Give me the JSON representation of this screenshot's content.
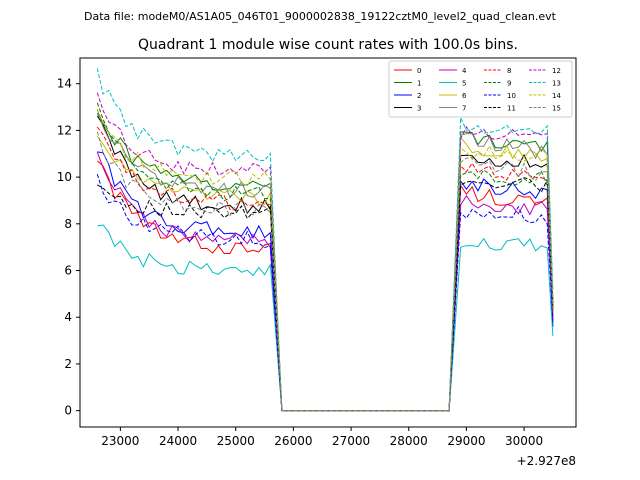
{
  "suptitle": "Data file: modeM0/AS1A05_046T01_9000002838_19122cztM0_level2_quad_clean.evt",
  "chart_data": {
    "type": "line",
    "title": "Quadrant 1 module wise count rates with 100.0s bins.",
    "xlabel": "",
    "ylabel": "",
    "x_offset_label": "+2.927e8",
    "xlim": [
      22300,
      30900
    ],
    "ylim": [
      -0.7,
      15.1
    ],
    "grid": false,
    "legend_position": "top-right",
    "x_ticks": [
      23000,
      24000,
      25000,
      26000,
      27000,
      28000,
      29000,
      30000
    ],
    "x_tick_labels": [
      "23000",
      "24000",
      "25000",
      "26000",
      "27000",
      "28000",
      "29000",
      "30000"
    ],
    "y_ticks": [
      0,
      2,
      4,
      6,
      8,
      10,
      12,
      14
    ],
    "y_tick_labels": [
      "0",
      "2",
      "4",
      "6",
      "8",
      "10",
      "12",
      "14"
    ],
    "x_segments": {
      "first_start": 22600,
      "first_end": 25600,
      "gap_start": 25800,
      "gap_end": 28700,
      "second_start": 28900,
      "second_end": 30500,
      "step": 100
    },
    "series": [
      {
        "name": "0",
        "color": "#ff0000",
        "dash": "solid",
        "start": 11.0,
        "plateau": 6.9,
        "second": 9.4,
        "end": 3.9
      },
      {
        "name": "1",
        "color": "#008000",
        "dash": "solid",
        "start": 13.0,
        "plateau": 9.6,
        "second": 11.8,
        "end": 4.3
      },
      {
        "name": "2",
        "color": "#0000ff",
        "dash": "solid",
        "start": 11.3,
        "plateau": 7.6,
        "second": 9.8,
        "end": 3.6
      },
      {
        "name": "3",
        "color": "#000000",
        "dash": "solid",
        "start": 12.8,
        "plateau": 8.7,
        "second": 11.0,
        "end": 4.6
      },
      {
        "name": "4",
        "color": "#bf00bf",
        "dash": "solid",
        "start": 11.2,
        "plateau": 7.2,
        "second": 9.0,
        "end": 4.0
      },
      {
        "name": "5",
        "color": "#00bfbf",
        "dash": "solid",
        "start": 8.0,
        "plateau": 5.9,
        "second": 7.3,
        "end": 3.2
      },
      {
        "name": "6",
        "color": "#bfbf00",
        "dash": "solid",
        "start": 11.8,
        "plateau": 9.1,
        "second": 11.4,
        "end": 4.4
      },
      {
        "name": "7",
        "color": "#808080",
        "dash": "solid",
        "start": 12.9,
        "plateau": 9.4,
        "second": 11.6,
        "end": 4.5
      },
      {
        "name": "8",
        "color": "#ff0000",
        "dash": "dashed",
        "start": 12.1,
        "plateau": 8.8,
        "second": 10.4,
        "end": 4.2
      },
      {
        "name": "9",
        "color": "#008000",
        "dash": "dashed",
        "start": 13.1,
        "plateau": 9.2,
        "second": 10.1,
        "end": 4.6
      },
      {
        "name": "10",
        "color": "#0000ff",
        "dash": "dashed",
        "start": 10.0,
        "plateau": 7.3,
        "second": 8.6,
        "end": 3.8
      },
      {
        "name": "11",
        "color": "#000000",
        "dash": "dashed",
        "start": 9.5,
        "plateau": 8.4,
        "second": 9.9,
        "end": 4.4
      },
      {
        "name": "12",
        "color": "#bf00bf",
        "dash": "dashed",
        "start": 13.4,
        "plateau": 10.2,
        "second": 12.0,
        "end": 4.8
      },
      {
        "name": "13",
        "color": "#00bfbf",
        "dash": "dashed",
        "start": 14.4,
        "plateau": 10.9,
        "second": 12.3,
        "end": 5.1
      },
      {
        "name": "14",
        "color": "#bfbf00",
        "dash": "dashed",
        "start": 12.6,
        "plateau": 9.9,
        "second": 11.1,
        "end": 4.7
      },
      {
        "name": "15",
        "color": "#808080",
        "dash": "dashed",
        "start": 11.6,
        "plateau": 8.6,
        "second": 10.6,
        "end": 4.3
      }
    ]
  }
}
